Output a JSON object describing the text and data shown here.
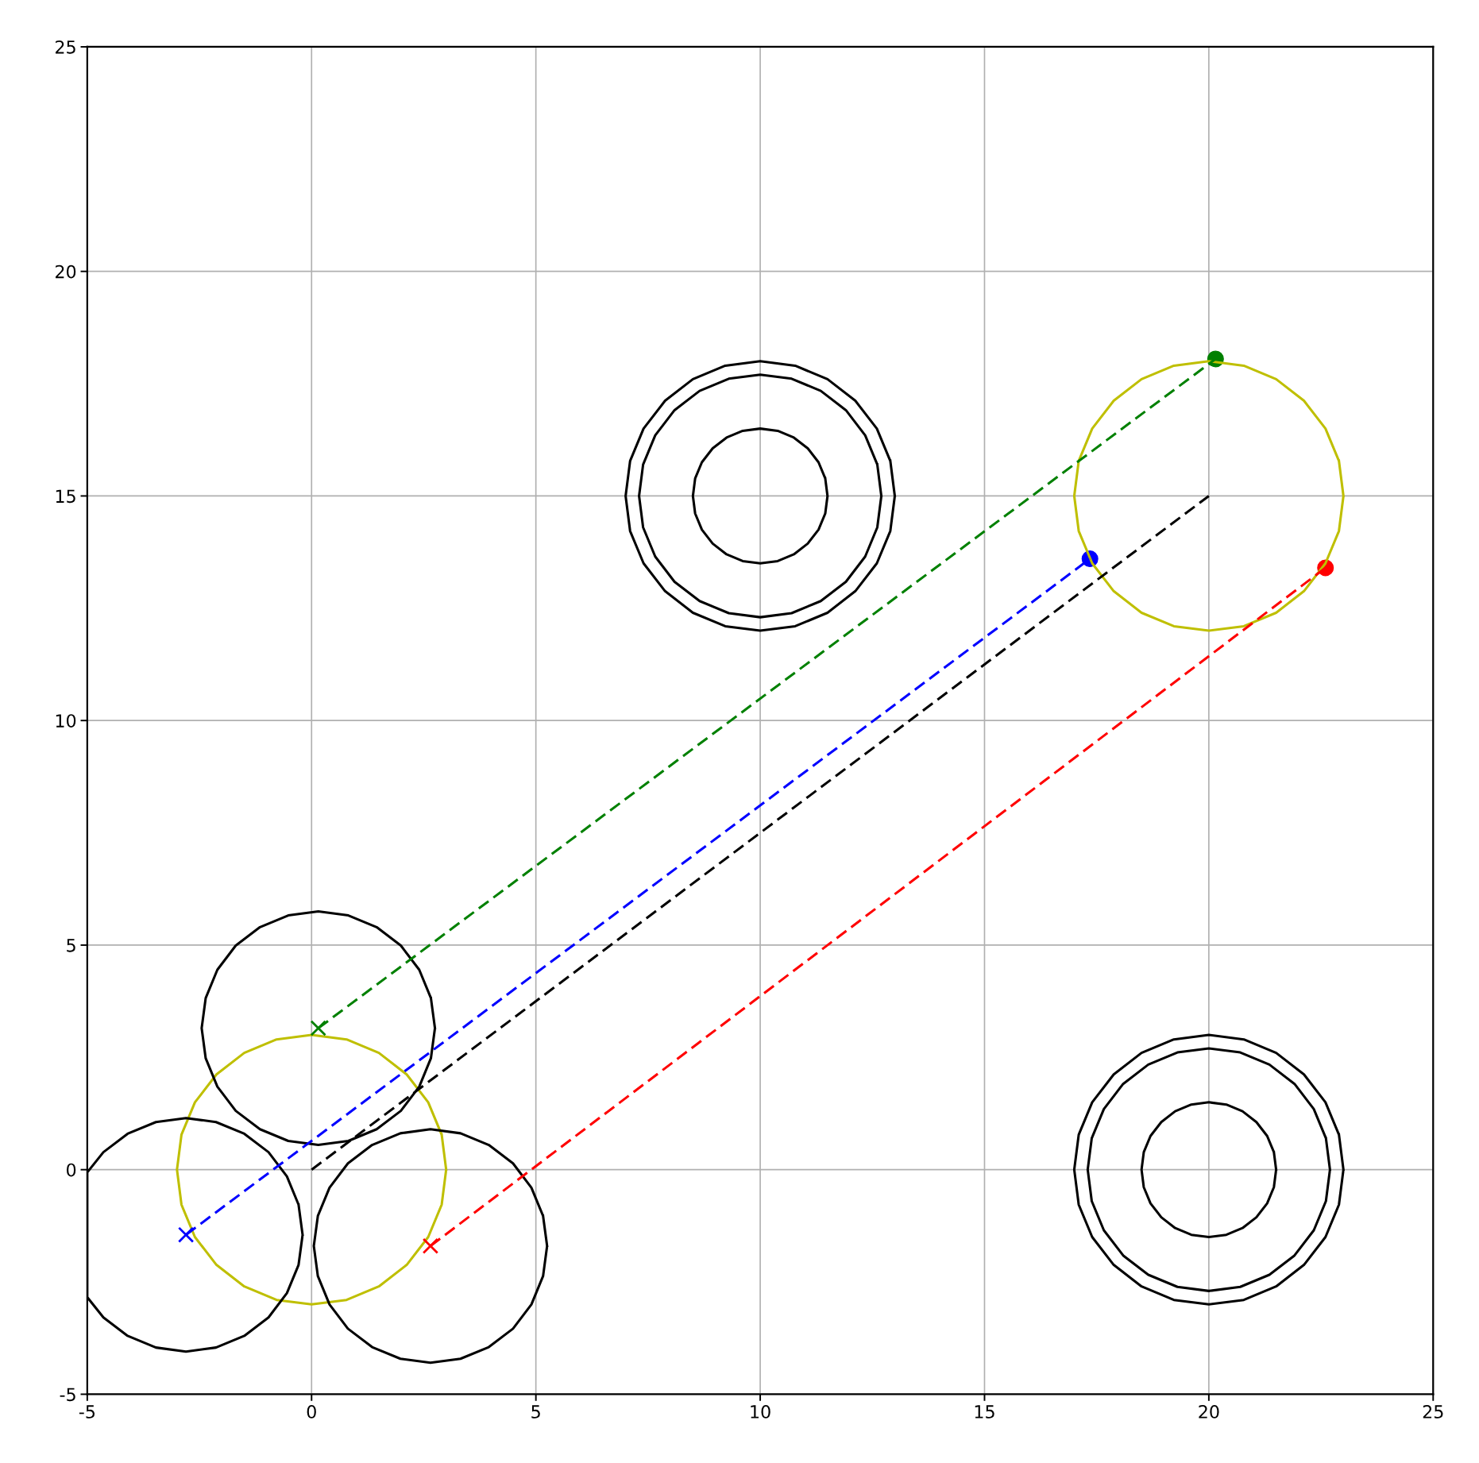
{
  "chart_data": {
    "type": "line",
    "xlim": [
      -5,
      25
    ],
    "ylim": [
      -5,
      25
    ],
    "xticks": [
      -5,
      0,
      5,
      10,
      15,
      20,
      25
    ],
    "yticks": [
      -5,
      0,
      5,
      10,
      15,
      20,
      25
    ],
    "grid": true,
    "series": [
      {
        "type": "line",
        "color": "#bfbf00",
        "line_style": "solid",
        "marker": "none",
        "x": [
          3,
          2.9,
          2.6,
          2.12,
          1.5,
          0.78,
          0,
          -0.78,
          -1.5,
          -2.12,
          -2.6,
          -2.9,
          -3,
          -2.9,
          -2.6,
          -2.12,
          -1.5,
          -0.78,
          0,
          0.78,
          1.5,
          2.12,
          2.6,
          2.9,
          3,
          2.9
        ],
        "values": [
          0,
          0.78,
          1.5,
          2.12,
          2.6,
          2.9,
          3,
          2.9,
          2.6,
          2.12,
          1.5,
          0.78,
          0,
          -0.78,
          -1.5,
          -2.12,
          -2.6,
          -2.9,
          -3,
          -2.9,
          -2.6,
          -2.12,
          -1.5,
          -0.78,
          0,
          0.78
        ]
      },
      {
        "type": "line",
        "color": "#bfbf00",
        "line_style": "solid",
        "marker": "none",
        "x": [
          23,
          22.9,
          22.6,
          22.12,
          21.5,
          20.78,
          20,
          19.22,
          18.5,
          17.88,
          17.4,
          17.1,
          17,
          17.1,
          17.4,
          17.88,
          18.5,
          19.22,
          20,
          20.78,
          21.5,
          22.12,
          22.6,
          22.9,
          23,
          22.9
        ],
        "values": [
          15,
          15.78,
          16.5,
          17.12,
          17.6,
          17.9,
          18,
          17.9,
          17.6,
          17.12,
          16.5,
          15.78,
          15,
          14.22,
          13.5,
          12.88,
          12.4,
          12.1,
          12,
          12.1,
          12.4,
          12.88,
          13.5,
          14.22,
          15,
          15.78
        ]
      },
      {
        "type": "line",
        "color": "#000000",
        "line_style": "solid",
        "marker": "none",
        "x": [
          13,
          12.9,
          12.6,
          12.12,
          11.5,
          10.78,
          10,
          9.22,
          8.5,
          7.88,
          7.4,
          7.1,
          7,
          7.1,
          7.4,
          7.88,
          8.5,
          9.22,
          10,
          10.78,
          11.5,
          12.12,
          12.6,
          12.9,
          13,
          12.9
        ],
        "values": [
          15,
          15.78,
          16.5,
          17.12,
          17.6,
          17.9,
          18,
          17.9,
          17.6,
          17.12,
          16.5,
          15.78,
          15,
          14.22,
          13.5,
          12.88,
          12.4,
          12.1,
          12,
          12.1,
          12.4,
          12.88,
          13.5,
          14.22,
          15,
          15.78
        ]
      },
      {
        "type": "line",
        "color": "#000000",
        "line_style": "solid",
        "marker": "none",
        "x": [
          12.7,
          12.61,
          12.34,
          11.91,
          11.35,
          10.7,
          10,
          9.3,
          8.65,
          8.09,
          7.66,
          7.39,
          7.3,
          7.39,
          7.66,
          8.09,
          8.65,
          9.3,
          10,
          10.7,
          11.35,
          11.91,
          12.34,
          12.61,
          12.7,
          12.61
        ],
        "values": [
          15,
          15.7,
          16.35,
          16.91,
          17.34,
          17.61,
          17.7,
          17.61,
          17.34,
          16.91,
          16.35,
          15.7,
          15,
          14.3,
          13.65,
          13.09,
          12.66,
          12.39,
          12.3,
          12.39,
          12.66,
          13.09,
          13.65,
          14.3,
          15,
          15.7
        ]
      },
      {
        "type": "line",
        "color": "#000000",
        "line_style": "solid",
        "marker": "none",
        "x": [
          11.5,
          11.45,
          11.3,
          11.06,
          10.75,
          10.39,
          10,
          9.61,
          9.25,
          8.94,
          8.7,
          8.55,
          8.5,
          8.55,
          8.7,
          8.94,
          9.25,
          9.61,
          10,
          10.39,
          10.75,
          11.06,
          11.3,
          11.45,
          11.5,
          11.45
        ],
        "values": [
          15,
          15.39,
          15.75,
          16.06,
          16.3,
          16.45,
          16.5,
          16.45,
          16.3,
          16.06,
          15.75,
          15.39,
          15,
          14.61,
          14.25,
          13.94,
          13.7,
          13.55,
          13.5,
          13.55,
          13.7,
          13.94,
          14.25,
          14.61,
          15,
          15.39
        ]
      },
      {
        "type": "line",
        "color": "#000000",
        "line_style": "solid",
        "marker": "none",
        "x": [
          23,
          22.9,
          22.6,
          22.12,
          21.5,
          20.78,
          20,
          19.22,
          18.5,
          17.88,
          17.4,
          17.1,
          17,
          17.1,
          17.4,
          17.88,
          18.5,
          19.22,
          20,
          20.78,
          21.5,
          22.12,
          22.6,
          22.9,
          23,
          22.9
        ],
        "values": [
          0,
          0.78,
          1.5,
          2.12,
          2.6,
          2.9,
          3,
          2.9,
          2.6,
          2.12,
          1.5,
          0.78,
          0,
          -0.78,
          -1.5,
          -2.12,
          -2.6,
          -2.9,
          -3,
          -2.9,
          -2.6,
          -2.12,
          -1.5,
          -0.78,
          0,
          0.78
        ]
      },
      {
        "type": "line",
        "color": "#000000",
        "line_style": "solid",
        "marker": "none",
        "x": [
          22.7,
          22.61,
          22.34,
          21.91,
          21.35,
          20.7,
          20,
          19.3,
          18.65,
          18.09,
          17.66,
          17.39,
          17.3,
          17.39,
          17.66,
          18.09,
          18.65,
          19.3,
          20,
          20.7,
          21.35,
          21.91,
          22.34,
          22.61,
          22.7,
          22.61
        ],
        "values": [
          0,
          0.7,
          1.35,
          1.91,
          2.34,
          2.61,
          2.7,
          2.61,
          2.34,
          1.91,
          1.35,
          0.7,
          0,
          -0.7,
          -1.35,
          -1.91,
          -2.34,
          -2.61,
          -2.7,
          -2.61,
          -2.34,
          -1.91,
          -1.35,
          -0.7,
          0,
          0.7
        ]
      },
      {
        "type": "line",
        "color": "#000000",
        "line_style": "solid",
        "marker": "none",
        "x": [
          21.5,
          21.45,
          21.3,
          21.06,
          20.75,
          20.39,
          20,
          19.61,
          19.25,
          18.94,
          18.7,
          18.55,
          18.5,
          18.55,
          18.7,
          18.94,
          19.25,
          19.61,
          20,
          20.39,
          20.75,
          21.06,
          21.3,
          21.45,
          21.5,
          21.45
        ],
        "values": [
          0,
          0.39,
          0.75,
          1.06,
          1.3,
          1.45,
          1.5,
          1.45,
          1.3,
          1.06,
          0.75,
          0.39,
          0,
          -0.39,
          -0.75,
          -1.06,
          -1.3,
          -1.45,
          -1.5,
          -1.45,
          -1.3,
          -1.06,
          -0.75,
          -0.39,
          0,
          0.39
        ]
      },
      {
        "type": "line",
        "color": "#000000",
        "line_style": "solid",
        "marker": "none",
        "x": [
          2.75,
          2.66,
          2.4,
          1.99,
          1.45,
          0.82,
          0.15,
          -0.52,
          -1.15,
          -1.69,
          -2.1,
          -2.36,
          -2.45,
          -2.36,
          -2.1,
          -1.69,
          -1.15,
          -0.52,
          0.15,
          0.82,
          1.45,
          1.99,
          2.4,
          2.66,
          2.75,
          2.66
        ],
        "values": [
          3.15,
          3.82,
          4.45,
          4.99,
          5.4,
          5.66,
          5.75,
          5.66,
          5.4,
          4.99,
          4.45,
          3.82,
          3.15,
          2.48,
          1.85,
          1.31,
          0.9,
          0.64,
          0.55,
          0.64,
          0.9,
          1.31,
          1.85,
          2.48,
          3.15,
          3.82
        ]
      },
      {
        "type": "line",
        "color": "#000000",
        "line_style": "solid",
        "marker": "none",
        "x": [
          -0.2,
          -0.29,
          -0.55,
          -0.96,
          -1.5,
          -2.13,
          -2.8,
          -3.47,
          -4.1,
          -4.64,
          -5,
          -5,
          -4.64,
          -4.1,
          -3.47,
          -2.8,
          -2.13,
          -1.5,
          -0.96,
          -0.55,
          -0.29,
          -0.2,
          -0.29
        ],
        "values": [
          -1.45,
          -0.78,
          -0.15,
          0.39,
          0.8,
          1.06,
          1.15,
          1.06,
          0.8,
          0.39,
          -0.06,
          -2.84,
          -3.29,
          -3.7,
          -3.96,
          -4.05,
          -3.96,
          -3.7,
          -3.29,
          -2.75,
          -2.12,
          -1.45,
          -0.78
        ]
      },
      {
        "type": "line",
        "color": "#000000",
        "line_style": "solid",
        "marker": "none",
        "x": [
          5.25,
          5.16,
          4.9,
          4.49,
          3.95,
          3.32,
          2.65,
          1.98,
          1.35,
          0.81,
          0.4,
          0.14,
          0.05,
          0.14,
          0.4,
          0.81,
          1.35,
          1.98,
          2.65,
          3.32,
          3.95,
          4.49,
          4.9,
          5.16,
          5.25,
          5.16
        ],
        "values": [
          -1.7,
          -1.03,
          -0.4,
          0.14,
          0.55,
          0.81,
          0.9,
          0.81,
          0.55,
          0.14,
          -0.4,
          -1.03,
          -1.7,
          -2.37,
          -3,
          -3.54,
          -3.95,
          -4.21,
          -4.3,
          -4.21,
          -3.95,
          -3.54,
          -3,
          -2.37,
          -1.7,
          -1.03
        ]
      },
      {
        "type": "line",
        "color": "#008000",
        "line_style": "dashed",
        "marker": "none",
        "x": [
          0.15,
          20.15
        ],
        "values": [
          3.15,
          18.05
        ]
      },
      {
        "type": "line",
        "color": "#0000ff",
        "line_style": "dashed",
        "marker": "none",
        "x": [
          -2.8,
          17.35
        ],
        "values": [
          -1.45,
          13.6
        ]
      },
      {
        "color": "#000000",
        "line_style": "dashed",
        "marker": "none",
        "x": [
          0,
          20
        ],
        "values": [
          0,
          15
        ]
      },
      {
        "type": "line",
        "color": "#ff0000",
        "line_style": "dashed",
        "marker": "none",
        "x": [
          2.65,
          22.6
        ],
        "values": [
          -1.7,
          13.4
        ]
      },
      {
        "type": "scatter",
        "marker": "cross",
        "colors": [
          "#008000",
          "#0000ff",
          "#ff0000"
        ],
        "x": [
          0.15,
          -2.8,
          2.65
        ],
        "values": [
          3.15,
          -1.45,
          -1.7
        ]
      },
      {
        "type": "scatter",
        "marker": "circle",
        "colors": [
          "#008000",
          "#0000ff",
          "#ff0000"
        ],
        "x": [
          20.15,
          17.35,
          22.6
        ],
        "values": [
          18.05,
          13.6,
          13.4
        ]
      }
    ]
  }
}
